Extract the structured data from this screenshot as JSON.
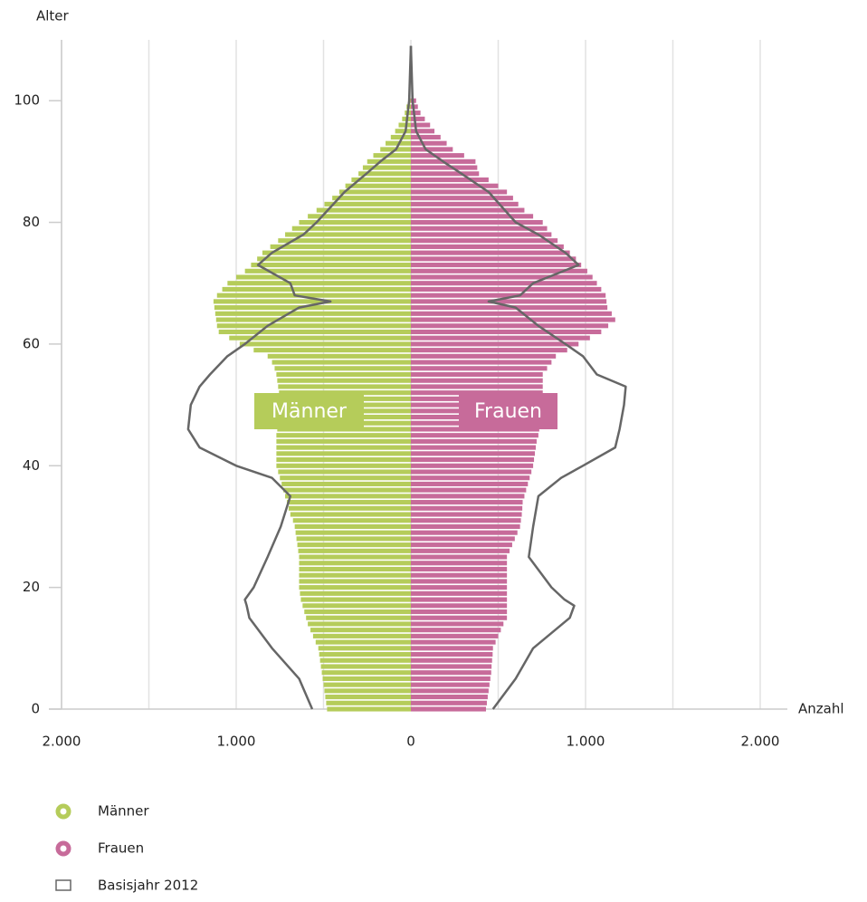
{
  "chart_data": {
    "type": "pyramid",
    "ylabel": "Alter",
    "xlabel": "Anzahl",
    "xlim": [
      -2000,
      2000
    ],
    "xticks": [
      {
        "value": -2000,
        "label": "2.000"
      },
      {
        "value": -1000,
        "label": "1.000"
      },
      0,
      {
        "value": 1000,
        "label": "1.000"
      },
      {
        "value": 2000,
        "label": "2.000"
      }
    ],
    "xgrid": [
      -2000,
      -1500,
      -1000,
      -500,
      0,
      500,
      1000,
      1500,
      2000
    ],
    "ylim": [
      0,
      110
    ],
    "yticks": [
      0,
      20,
      40,
      60,
      80,
      100
    ],
    "ages": [
      0,
      1,
      2,
      3,
      4,
      5,
      6,
      7,
      8,
      9,
      10,
      11,
      12,
      13,
      14,
      15,
      16,
      17,
      18,
      19,
      20,
      21,
      22,
      23,
      24,
      25,
      26,
      27,
      28,
      29,
      30,
      31,
      32,
      33,
      34,
      35,
      36,
      37,
      38,
      39,
      40,
      41,
      42,
      43,
      44,
      45,
      46,
      47,
      48,
      49,
      50,
      51,
      52,
      53,
      54,
      55,
      56,
      57,
      58,
      59,
      60,
      61,
      62,
      63,
      64,
      65,
      66,
      67,
      68,
      69,
      70,
      71,
      72,
      73,
      74,
      75,
      76,
      77,
      78,
      79,
      80,
      81,
      82,
      83,
      84,
      85,
      86,
      87,
      88,
      89,
      90,
      91,
      92,
      93,
      94,
      95,
      96,
      97,
      98,
      99,
      100
    ],
    "series": [
      {
        "name": "Männer",
        "color": "#b5cc5a",
        "side": "left",
        "values": [
          480,
          485,
          490,
          495,
          500,
          505,
          510,
          515,
          520,
          525,
          530,
          545,
          560,
          575,
          590,
          600,
          610,
          620,
          630,
          635,
          640,
          640,
          640,
          640,
          640,
          640,
          645,
          650,
          655,
          660,
          665,
          675,
          690,
          700,
          710,
          720,
          730,
          740,
          750,
          760,
          770,
          770,
          770,
          770,
          770,
          770,
          765,
          760,
          755,
          750,
          745,
          750,
          755,
          760,
          765,
          770,
          780,
          795,
          820,
          900,
          980,
          1040,
          1100,
          1110,
          1115,
          1120,
          1125,
          1130,
          1110,
          1080,
          1050,
          1000,
          950,
          915,
          880,
          850,
          805,
          760,
          720,
          680,
          640,
          590,
          540,
          495,
          450,
          410,
          375,
          340,
          300,
          275,
          250,
          215,
          175,
          145,
          115,
          90,
          70,
          50,
          35,
          25,
          15
        ]
      },
      {
        "name": "Frauen",
        "color": "#c76b9a",
        "side": "right",
        "values": [
          430,
          435,
          440,
          445,
          450,
          455,
          460,
          462,
          465,
          468,
          470,
          485,
          500,
          515,
          530,
          550,
          550,
          550,
          550,
          550,
          550,
          550,
          550,
          550,
          550,
          550,
          565,
          580,
          595,
          610,
          625,
          630,
          635,
          638,
          640,
          650,
          660,
          670,
          680,
          690,
          700,
          705,
          710,
          715,
          720,
          730,
          735,
          740,
          745,
          750,
          755,
          755,
          755,
          755,
          755,
          755,
          780,
          805,
          830,
          895,
          960,
          1025,
          1090,
          1130,
          1170,
          1150,
          1125,
          1120,
          1115,
          1090,
          1065,
          1040,
          1010,
          975,
          945,
          910,
          875,
          840,
          805,
          780,
          755,
          700,
          650,
          615,
          585,
          550,
          500,
          445,
          390,
          380,
          370,
          305,
          240,
          205,
          170,
          135,
          110,
          80,
          55,
          40,
          30
        ]
      }
    ],
    "baseline": {
      "name": "Basisjahr 2012",
      "color": "#666666",
      "ages": [
        0,
        5,
        10,
        15,
        17,
        18,
        20,
        25,
        30,
        35,
        38,
        40,
        43,
        46,
        50,
        53,
        55,
        58,
        60,
        63,
        66,
        67,
        68,
        70,
        73,
        75,
        78,
        80,
        85,
        88,
        90,
        92,
        95,
        100,
        109
      ],
      "left": [
        565,
        640,
        795,
        925,
        940,
        950,
        900,
        820,
        745,
        690,
        795,
        1000,
        1210,
        1275,
        1260,
        1210,
        1150,
        1050,
        950,
        820,
        640,
        460,
        665,
        690,
        875,
        795,
        615,
        540,
        380,
        255,
        175,
        85,
        30,
        10,
        0
      ],
      "right": [
        470,
        600,
        700,
        910,
        935,
        880,
        805,
        675,
        700,
        730,
        860,
        985,
        1170,
        1195,
        1220,
        1230,
        1065,
        985,
        885,
        730,
        600,
        445,
        625,
        700,
        960,
        885,
        730,
        600,
        445,
        290,
        185,
        85,
        30,
        10,
        0
      ]
    }
  }
}
